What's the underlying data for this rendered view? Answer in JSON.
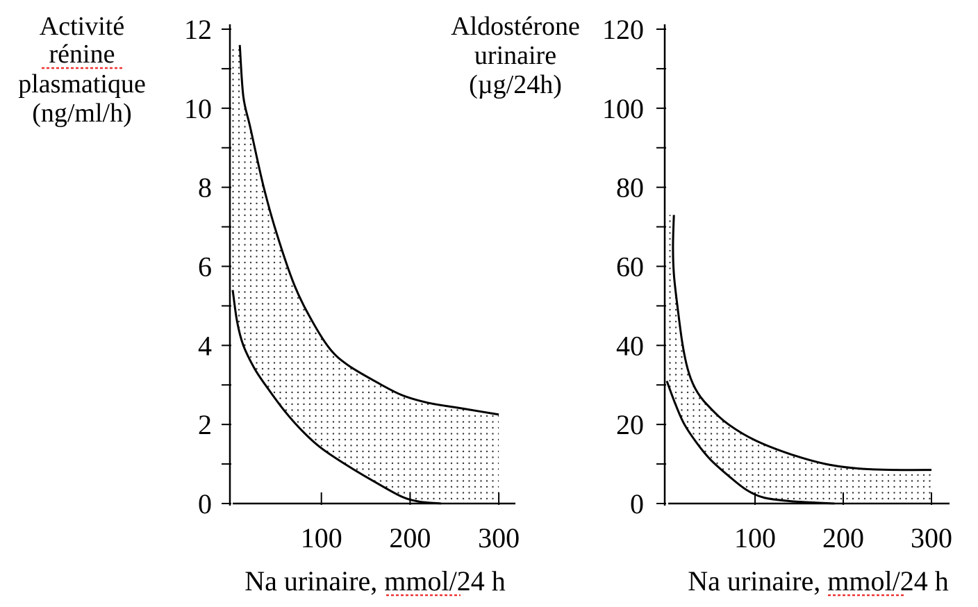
{
  "chart_data": [
    {
      "type": "area",
      "title": "",
      "ylabel_lines": [
        "Activité",
        "rénine",
        "plasmatique",
        "(ng/ml/h)"
      ],
      "xlabel": "Na urinaire, mmol/24 h",
      "xlim": [
        0,
        310
      ],
      "ylim": [
        0,
        12
      ],
      "xticks": [
        100,
        200,
        300
      ],
      "xtick_labels": [
        "100",
        "200",
        "300"
      ],
      "yticks": [
        0,
        2,
        4,
        6,
        8,
        10,
        12
      ],
      "ytick_labels": [
        "0",
        "2",
        "4",
        "6",
        "8",
        "10",
        "12"
      ],
      "y_minor_ticks": [
        1,
        3,
        5,
        7,
        9,
        11
      ],
      "grid": false,
      "fill_pattern": "dotted",
      "series": [
        {
          "name": "upper bound",
          "x": [
            8,
            12,
            20,
            35,
            50,
            70,
            90,
            110,
            130,
            160,
            190,
            220,
            260,
            300
          ],
          "y": [
            11.6,
            10.3,
            9.5,
            8.0,
            6.8,
            5.5,
            4.6,
            3.9,
            3.5,
            3.1,
            2.75,
            2.55,
            2.4,
            2.25
          ]
        },
        {
          "name": "lower bound",
          "x": [
            0,
            5,
            12,
            25,
            40,
            60,
            80,
            100,
            130,
            160,
            190,
            210,
            235
          ],
          "y": [
            5.4,
            4.6,
            4.0,
            3.4,
            2.9,
            2.3,
            1.8,
            1.4,
            0.95,
            0.55,
            0.18,
            0.05,
            0.0
          ]
        }
      ]
    },
    {
      "type": "area",
      "title": "",
      "ylabel_lines": [
        "Aldostérone",
        "urinaire",
        "(µg/24h)"
      ],
      "xlabel": "Na urinaire, mmol/24 h",
      "xlim": [
        0,
        320
      ],
      "ylim": [
        0,
        120
      ],
      "xticks": [
        100,
        200,
        300
      ],
      "xtick_labels": [
        "100",
        "200",
        "300"
      ],
      "yticks": [
        0,
        20,
        40,
        60,
        80,
        100,
        120
      ],
      "ytick_labels": [
        "0",
        "20",
        "40",
        "60",
        "80",
        "100",
        "120"
      ],
      "y_minor_ticks": [
        10,
        30,
        50,
        70,
        90,
        110
      ],
      "grid": false,
      "fill_pattern": "dotted",
      "series": [
        {
          "name": "upper bound",
          "x": [
            8,
            7,
            8,
            12,
            18,
            25,
            35,
            50,
            70,
            100,
            140,
            180,
            220,
            260,
            300
          ],
          "y": [
            73,
            65,
            58,
            50,
            40,
            33,
            28,
            24,
            20,
            16,
            12.5,
            10,
            8.8,
            8.5,
            8.5
          ]
        },
        {
          "name": "lower bound",
          "x": [
            0,
            10,
            20,
            35,
            50,
            70,
            90,
            110,
            140,
            170,
            190
          ],
          "y": [
            31,
            25,
            20,
            15,
            11,
            7,
            3.5,
            1.5,
            0.6,
            0.2,
            0.0
          ]
        }
      ]
    }
  ]
}
